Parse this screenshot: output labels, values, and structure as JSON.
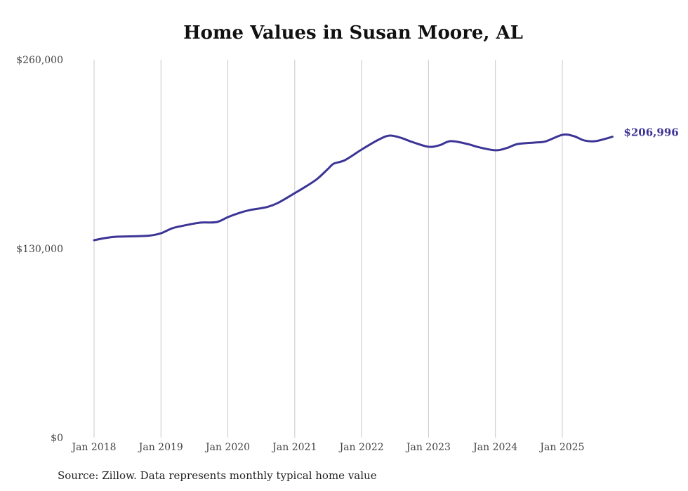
{
  "chart_data": {
    "type": "line",
    "title": "Home Values in Susan Moore, AL",
    "xlabel": "",
    "ylabel": "",
    "ylim": [
      0,
      260000
    ],
    "y_ticks": [
      0,
      130000,
      260000
    ],
    "y_tick_labels": [
      "$0",
      "$130,000",
      "$260,000"
    ],
    "x_ticks": [
      "2018-01",
      "2019-01",
      "2020-01",
      "2021-01",
      "2022-01",
      "2023-01",
      "2024-01",
      "2025-01"
    ],
    "x_tick_labels": [
      "Jan 2018",
      "Jan 2019",
      "Jan 2020",
      "Jan 2021",
      "Jan 2022",
      "Jan 2023",
      "Jan 2024",
      "Jan 2025"
    ],
    "grid": "vertical",
    "line_color": "#3c3596",
    "end_label": "$206,996",
    "series": [
      {
        "name": "Typical home value",
        "points": [
          [
            "2018-01",
            135800
          ],
          [
            "2018-03",
            137300
          ],
          [
            "2018-05",
            138200
          ],
          [
            "2018-08",
            138500
          ],
          [
            "2018-11",
            139000
          ],
          [
            "2019-01",
            140600
          ],
          [
            "2019-03",
            144000
          ],
          [
            "2019-05",
            145800
          ],
          [
            "2019-08",
            147900
          ],
          [
            "2019-11",
            148300
          ],
          [
            "2020-01",
            151700
          ],
          [
            "2020-03",
            154500
          ],
          [
            "2020-05",
            156600
          ],
          [
            "2020-08",
            158600
          ],
          [
            "2020-10",
            161500
          ],
          [
            "2021-01",
            168200
          ],
          [
            "2021-03",
            172800
          ],
          [
            "2021-05",
            177900
          ],
          [
            "2021-07",
            185000
          ],
          [
            "2021-08",
            188500
          ],
          [
            "2021-10",
            190900
          ],
          [
            "2022-01",
            198200
          ],
          [
            "2022-04",
            204900
          ],
          [
            "2022-06",
            207800
          ],
          [
            "2022-08",
            206300
          ],
          [
            "2022-10",
            203500
          ],
          [
            "2023-01",
            200100
          ],
          [
            "2023-03",
            201200
          ],
          [
            "2023-05",
            204000
          ],
          [
            "2023-08",
            202000
          ],
          [
            "2023-10",
            199800
          ],
          [
            "2024-01",
            197700
          ],
          [
            "2024-03",
            199200
          ],
          [
            "2024-05",
            202000
          ],
          [
            "2024-08",
            203000
          ],
          [
            "2024-10",
            203800
          ],
          [
            "2025-01",
            208300
          ],
          [
            "2025-03",
            207500
          ],
          [
            "2025-05",
            204400
          ],
          [
            "2025-07",
            204000
          ],
          [
            "2025-10",
            206996
          ]
        ]
      }
    ]
  },
  "source_text": "Source: Zillow. Data represents monthly typical home value"
}
